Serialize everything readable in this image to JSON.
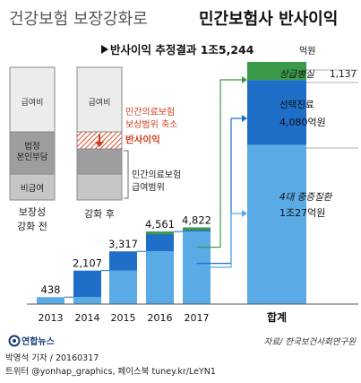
{
  "header": {
    "title_light": "건강보험 보장강화로",
    "title_bold": "민간보험사 반사이익",
    "subtitle_main": "반사이익 추정결과  1조5,244",
    "subtitle_unit": "억원"
  },
  "diagram": {
    "before_label_line1": "보장성",
    "before_label_line2": "강화 전",
    "after_label": "강화 후",
    "segment_benefit": "급여비",
    "segment_copay_line1": "법정",
    "segment_copay_line2": "본인부담",
    "segment_nonbenefit": "비급여",
    "shrink_line1": "민간의료보험",
    "shrink_line2": "보상범위 축소",
    "shrink_line3": "반사이익",
    "range_line1": "민간의료보험",
    "range_line2": "급여범위"
  },
  "chart_data": {
    "type": "bar",
    "categories": [
      "2013",
      "2014",
      "2015",
      "2016",
      "2017"
    ],
    "values": [
      438,
      2107,
      3317,
      4561,
      4822
    ],
    "data_labels": [
      "438",
      "2,107",
      "3,317",
      "4,561",
      "4,822"
    ],
    "total": {
      "label": "합계",
      "value": 15244,
      "segments": [
        {
          "name_line1": "4대 중증질환",
          "name_line2": "1조27억원",
          "value": 10027,
          "color": "#5aaae6"
        },
        {
          "name_line1": "선택진료",
          "name_line2": "4,080억원",
          "value": 4080,
          "color": "#1f6ec8"
        },
        {
          "name_line1": "상급병실",
          "name_line2": "1,137",
          "value": 1137,
          "color": "#3a9a48"
        }
      ]
    },
    "colors": {
      "light": "#5aaae6",
      "mid": "#1f6ec8",
      "green": "#3a9a48"
    }
  },
  "footer": {
    "source": "자료/ 한국보건사회연구원",
    "logo_text": "연합뉴스",
    "credit_line1": "박영석 기자 / 20160317",
    "credit_line2": "트위터 @yonhap_graphics, 페이스북 tuney.kr/LeYN1"
  }
}
